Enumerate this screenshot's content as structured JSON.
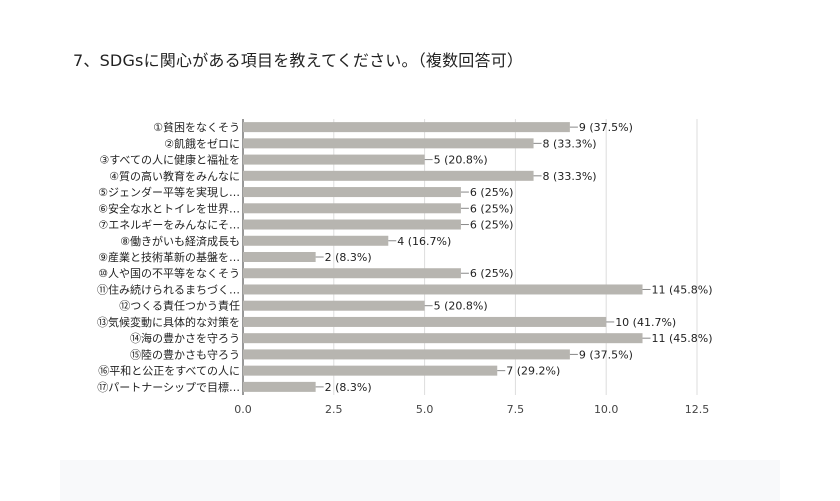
{
  "title": "7、SDGsに関心がある項目を教えてください。（複数回答可）",
  "colors": {
    "bar": "#b7b5b0",
    "grid": "#dddddd",
    "axis": "#333333",
    "text": "#222222"
  },
  "chart_data": {
    "type": "bar",
    "orientation": "horizontal",
    "categories": [
      "①貧困をなくそう",
      "②飢餓をゼロに",
      "③すべての人に健康と福祉を",
      "④質の高い教育をみんなに",
      "⑤ジェンダー平等を実現し…",
      "⑥安全な水とトイレを世界…",
      "⑦エネルギーをみんなにそ…",
      "⑧働きがいも経済成長も",
      "⑨産業と技術革新の基盤を…",
      "⑩人や国の不平等をなくそう",
      "⑪住み続けられるまちづく…",
      "⑫つくる責任つかう責任",
      "⑬気候変動に具体的な対策を",
      "⑭海の豊かさを守ろう",
      "⑮陸の豊かさも守ろう",
      "⑯平和と公正をすべての人に",
      "⑰パートナーシップで目標…"
    ],
    "values": [
      9,
      8,
      5,
      8,
      6,
      6,
      6,
      4,
      2,
      6,
      11,
      5,
      10,
      11,
      9,
      7,
      2
    ],
    "data_labels": [
      "9 (37.5%)",
      "8 (33.3%)",
      "5 (20.8%)",
      "8 (33.3%)",
      "6 (25%)",
      "6 (25%)",
      "6 (25%)",
      "4 (16.7%)",
      "2 (8.3%)",
      "6 (25%)",
      "11 (45.8%)",
      "5 (20.8%)",
      "10 (41.7%)",
      "11 (45.8%)",
      "9 (37.5%)",
      "7 (29.2%)",
      "2 (8.3%)"
    ],
    "x_ticks": [
      "0.0",
      "2.5",
      "5.0",
      "7.5",
      "10.0",
      "12.5"
    ],
    "xlim": [
      0,
      12.5
    ],
    "grid": true,
    "legend": "none"
  }
}
